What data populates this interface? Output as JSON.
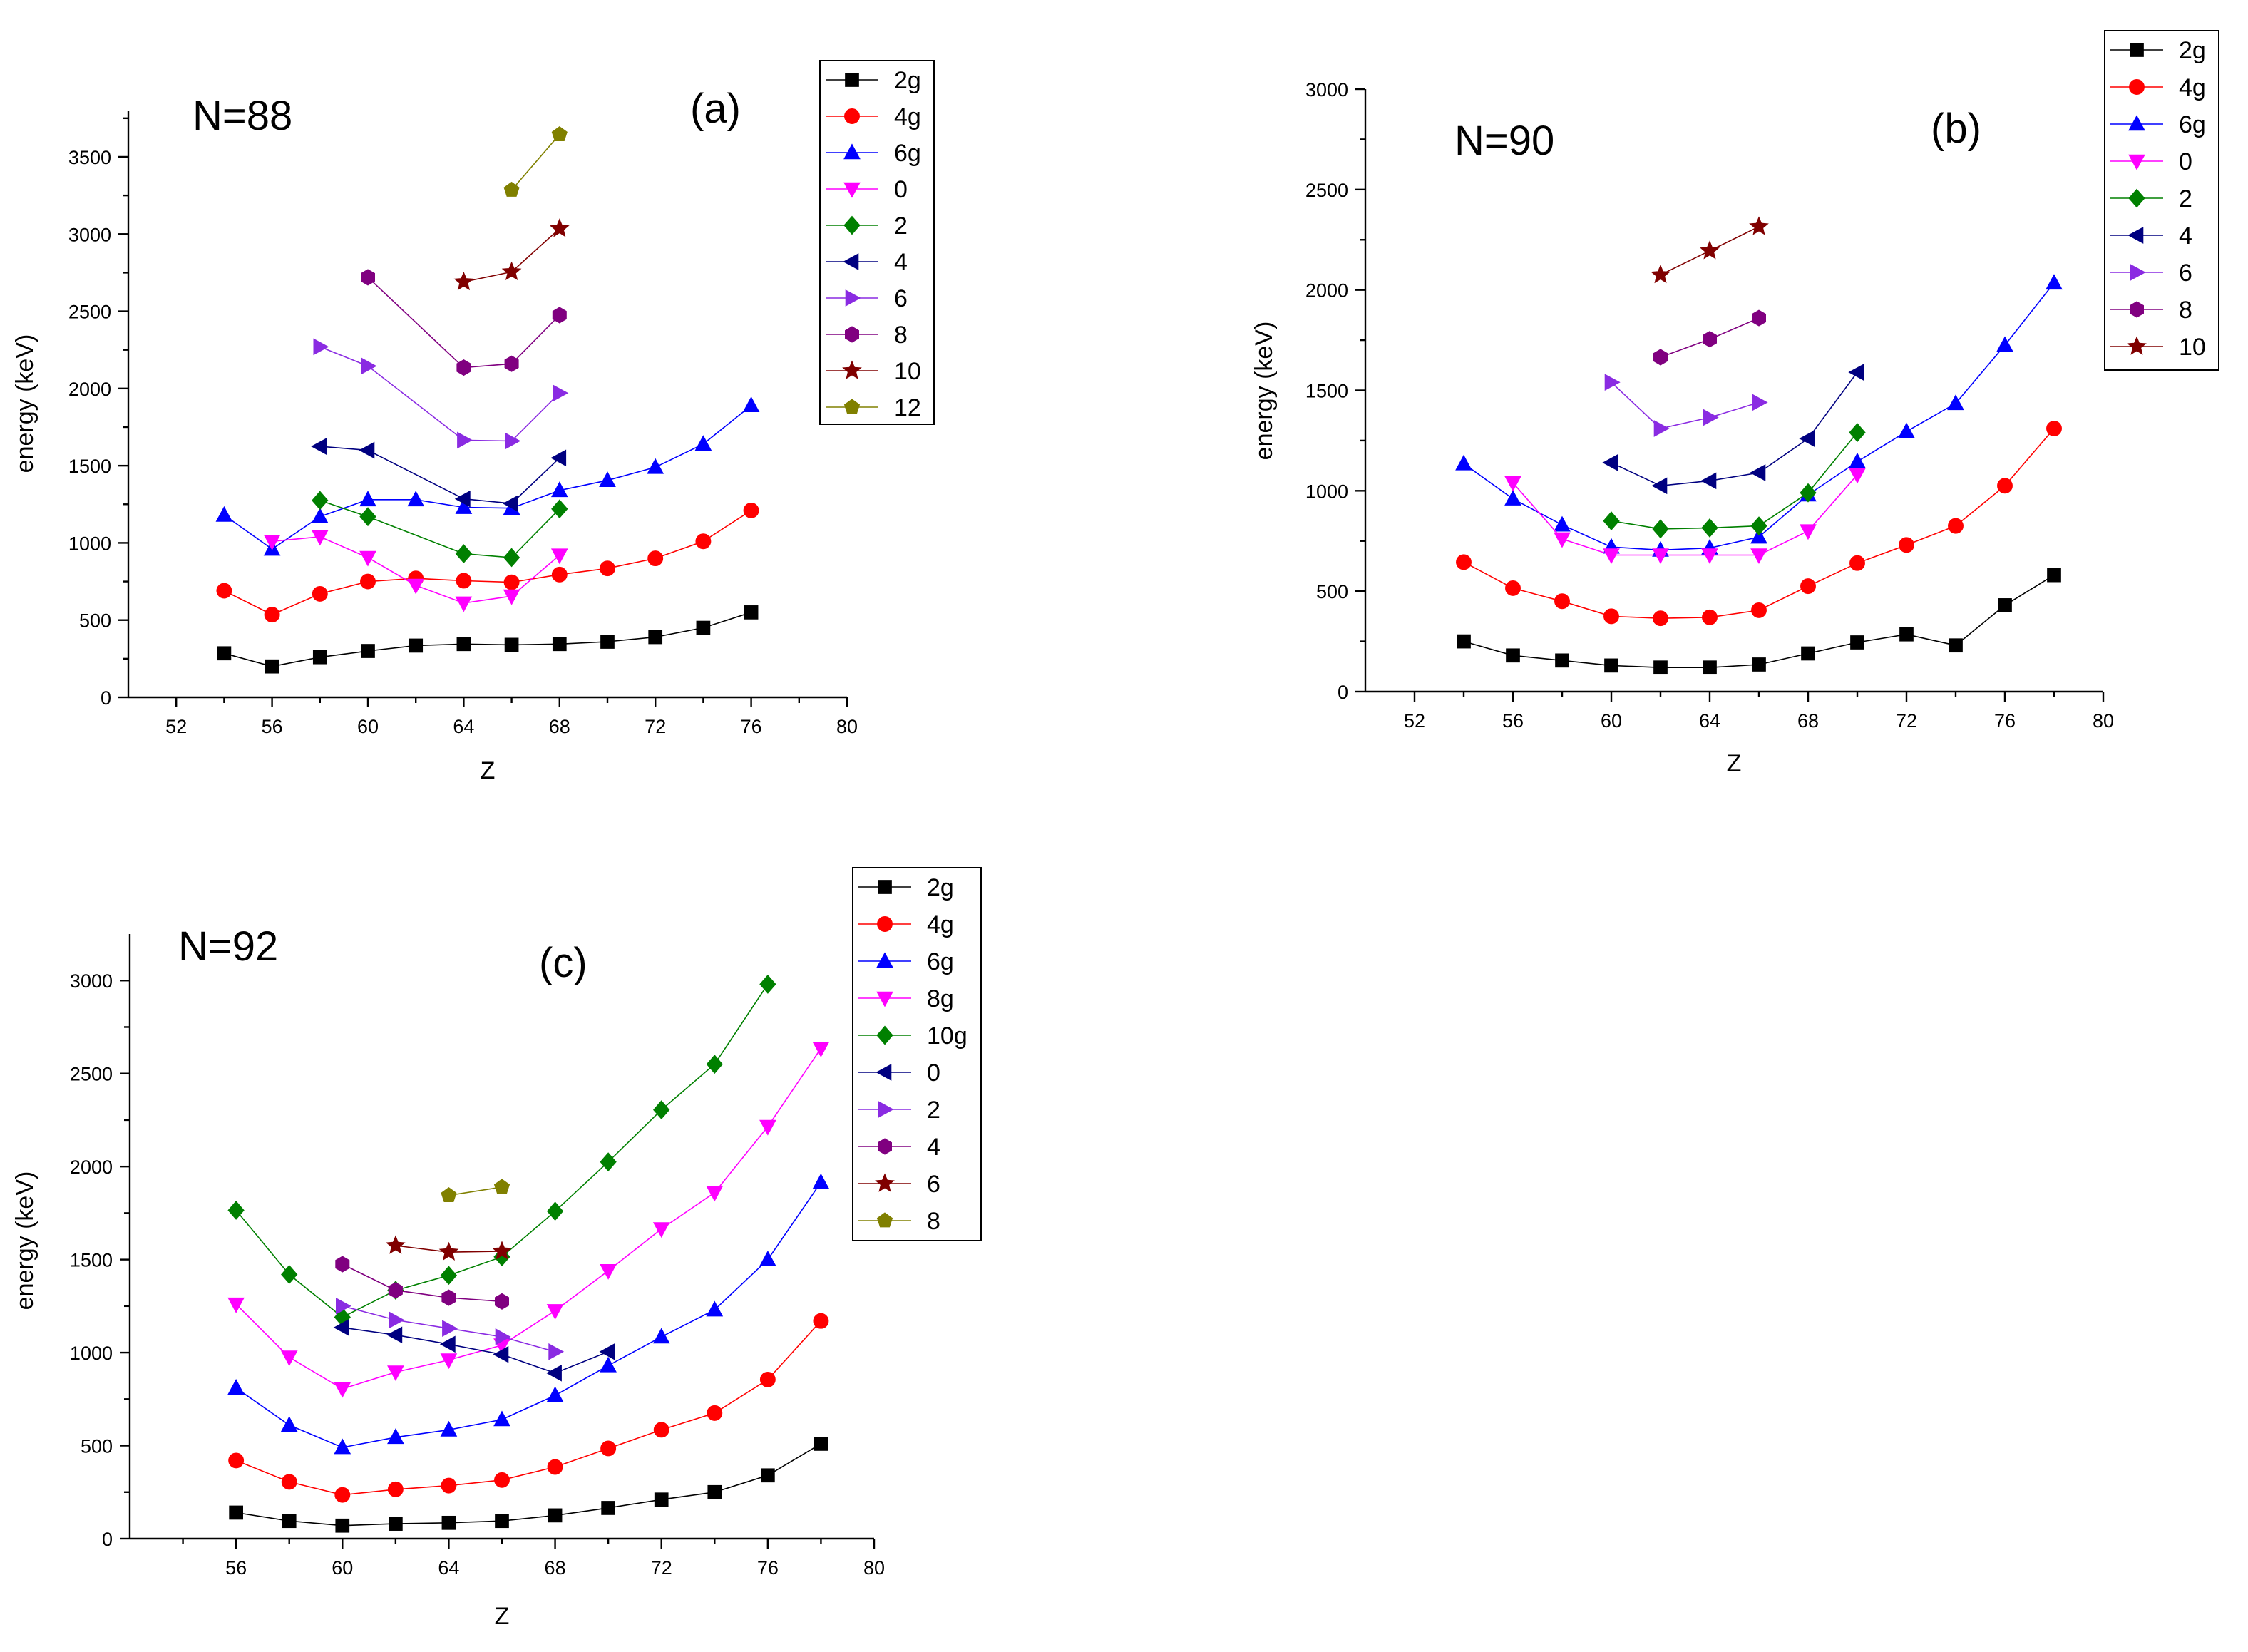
{
  "chart_data": [
    {
      "type": "line",
      "panel": "(a)",
      "annotation": "N=88",
      "xlabel": "Z",
      "ylabel": "energy (keV)",
      "xlim": [
        50,
        80
      ],
      "ylim": [
        0,
        3800
      ],
      "xticks": [
        52,
        56,
        60,
        64,
        68,
        72,
        76,
        80
      ],
      "yticks": [
        0,
        500,
        1000,
        1500,
        2000,
        2500,
        3000,
        3500
      ],
      "legend_position": "top-right",
      "series": [
        {
          "name": "2g",
          "color": "#000000",
          "marker": "square",
          "x": [
            54,
            56,
            58,
            60,
            62,
            64,
            66,
            68,
            70,
            72,
            74,
            76
          ],
          "y": [
            285,
            200,
            260,
            300,
            335,
            345,
            340,
            345,
            360,
            390,
            450,
            550
          ]
        },
        {
          "name": "4g",
          "color": "#ff0000",
          "marker": "circle",
          "x": [
            54,
            56,
            58,
            60,
            62,
            64,
            66,
            68,
            70,
            72,
            74,
            76
          ],
          "y": [
            690,
            535,
            670,
            750,
            770,
            755,
            745,
            795,
            835,
            900,
            1010,
            1210
          ]
        },
        {
          "name": "6g",
          "color": "#0000ff",
          "marker": "triangle-up",
          "x": [
            54,
            56,
            58,
            60,
            62,
            64,
            66,
            68,
            70,
            72,
            74,
            76
          ],
          "y": [
            1180,
            960,
            1170,
            1280,
            1280,
            1230,
            1225,
            1340,
            1405,
            1490,
            1640,
            1890
          ]
        },
        {
          "name": "0",
          "color": "#ff00ff",
          "marker": "triangle-down",
          "x": [
            56,
            58,
            60,
            62,
            64,
            66,
            68
          ],
          "y": [
            1010,
            1040,
            905,
            725,
            610,
            655,
            920
          ]
        },
        {
          "name": "2",
          "color": "#008000",
          "marker": "diamond",
          "x": [
            58,
            60,
            64,
            66,
            68
          ],
          "y": [
            1275,
            1170,
            930,
            905,
            1220
          ]
        },
        {
          "name": "4",
          "color": "#000080",
          "marker": "triangle-left",
          "x": [
            58,
            60,
            64,
            66,
            68
          ],
          "y": [
            1625,
            1600,
            1285,
            1255,
            1550
          ]
        },
        {
          "name": "6",
          "color": "#8a2be2",
          "marker": "triangle-right",
          "x": [
            58,
            60,
            64,
            66,
            68
          ],
          "y": [
            2270,
            2145,
            1665,
            1660,
            1970
          ]
        },
        {
          "name": "8",
          "color": "#800080",
          "marker": "hexagon",
          "x": [
            60,
            64,
            66,
            68
          ],
          "y": [
            2720,
            2135,
            2160,
            2475
          ]
        },
        {
          "name": "10",
          "color": "#800000",
          "marker": "star",
          "x": [
            64,
            66,
            68
          ],
          "y": [
            2690,
            2755,
            3035
          ]
        },
        {
          "name": "12",
          "color": "#808000",
          "marker": "pentagon",
          "x": [
            66,
            68
          ],
          "y": [
            3285,
            3645
          ]
        }
      ]
    },
    {
      "type": "line",
      "panel": "(b)",
      "annotation": "N=90",
      "xlabel": "Z",
      "ylabel": "energy (keV)",
      "xlim": [
        50,
        80
      ],
      "ylim": [
        0,
        3000
      ],
      "xticks": [
        52,
        56,
        60,
        64,
        68,
        72,
        76,
        80
      ],
      "yticks": [
        0,
        500,
        1000,
        1500,
        2000,
        2500,
        3000
      ],
      "legend_position": "top-right",
      "series": [
        {
          "name": "2g",
          "color": "#000000",
          "marker": "square",
          "x": [
            54,
            56,
            58,
            60,
            62,
            64,
            66,
            68,
            70,
            72,
            74,
            76,
            78
          ],
          "y": [
            250,
            180,
            155,
            130,
            120,
            120,
            135,
            190,
            245,
            285,
            230,
            430,
            580
          ]
        },
        {
          "name": "4g",
          "color": "#ff0000",
          "marker": "circle",
          "x": [
            54,
            56,
            58,
            60,
            62,
            64,
            66,
            68,
            70,
            72,
            74,
            76,
            78
          ],
          "y": [
            645,
            515,
            450,
            375,
            365,
            370,
            405,
            525,
            640,
            730,
            825,
            1025,
            1310
          ]
        },
        {
          "name": "6g",
          "color": "#0000ff",
          "marker": "triangle-up",
          "x": [
            54,
            56,
            58,
            60,
            62,
            64,
            66,
            68,
            70,
            72,
            74,
            76,
            78
          ],
          "y": [
            1135,
            960,
            830,
            720,
            705,
            715,
            770,
            980,
            1145,
            1295,
            1435,
            1725,
            2035
          ]
        },
        {
          "name": "0",
          "color": "#ff00ff",
          "marker": "triangle-down",
          "x": [
            56,
            58,
            60,
            62,
            64,
            66,
            68,
            70
          ],
          "y": [
            1040,
            760,
            680,
            680,
            680,
            680,
            800,
            1080
          ]
        },
        {
          "name": "2",
          "color": "#008000",
          "marker": "diamond",
          "x": [
            60,
            62,
            64,
            66,
            68,
            70
          ],
          "y": [
            850,
            810,
            815,
            825,
            990,
            1290
          ]
        },
        {
          "name": "4",
          "color": "#000080",
          "marker": "triangle-left",
          "x": [
            60,
            62,
            64,
            66,
            68,
            70
          ],
          "y": [
            1140,
            1025,
            1050,
            1090,
            1260,
            1590
          ]
        },
        {
          "name": "6",
          "color": "#8a2be2",
          "marker": "triangle-right",
          "x": [
            60,
            62,
            64,
            66
          ],
          "y": [
            1540,
            1310,
            1365,
            1440
          ]
        },
        {
          "name": "8",
          "color": "#800080",
          "marker": "hexagon",
          "x": [
            62,
            64,
            66
          ],
          "y": [
            1665,
            1755,
            1860
          ]
        },
        {
          "name": "10",
          "color": "#800000",
          "marker": "star",
          "x": [
            62,
            64,
            66
          ],
          "y": [
            2075,
            2195,
            2315
          ]
        }
      ]
    },
    {
      "type": "line",
      "panel": "(c)",
      "annotation": "N=92",
      "xlabel": "Z",
      "ylabel": "energy (keV)",
      "xlim": [
        52,
        80
      ],
      "ylim": [
        0,
        3250
      ],
      "xticks": [
        56,
        60,
        64,
        68,
        72,
        76,
        80
      ],
      "yticks": [
        0,
        500,
        1000,
        1500,
        2000,
        2500,
        3000
      ],
      "legend_position": "top-right",
      "series": [
        {
          "name": "2g",
          "color": "#000000",
          "marker": "square",
          "x": [
            56,
            58,
            60,
            62,
            64,
            66,
            68,
            70,
            72,
            74,
            76,
            78
          ],
          "y": [
            140,
            95,
            70,
            80,
            85,
            95,
            125,
            165,
            210,
            250,
            340,
            510
          ]
        },
        {
          "name": "4g",
          "color": "#ff0000",
          "marker": "circle",
          "x": [
            56,
            58,
            60,
            62,
            64,
            66,
            68,
            70,
            72,
            74,
            76,
            78
          ],
          "y": [
            420,
            305,
            235,
            265,
            285,
            315,
            385,
            485,
            585,
            675,
            855,
            1170
          ]
        },
        {
          "name": "6g",
          "color": "#0000ff",
          "marker": "triangle-up",
          "x": [
            56,
            58,
            60,
            62,
            64,
            66,
            68,
            70,
            72,
            74,
            76,
            78
          ],
          "y": [
            810,
            610,
            490,
            545,
            585,
            640,
            770,
            930,
            1085,
            1230,
            1500,
            1915
          ]
        },
        {
          "name": "8g",
          "color": "#ff00ff",
          "marker": "triangle-down",
          "x": [
            56,
            58,
            60,
            62,
            64,
            66,
            68,
            70,
            72,
            74,
            76,
            78
          ],
          "y": [
            1260,
            975,
            805,
            895,
            960,
            1040,
            1225,
            1440,
            1665,
            1860,
            2215,
            2635
          ]
        },
        {
          "name": "10g",
          "color": "#008000",
          "marker": "diamond",
          "x": [
            56,
            58,
            60,
            62,
            64,
            66,
            68,
            70,
            72,
            74,
            76
          ],
          "y": [
            1765,
            1420,
            1190,
            1335,
            1415,
            1515,
            1760,
            2025,
            2305,
            2550,
            2980
          ]
        },
        {
          "name": "0",
          "color": "#000080",
          "marker": "triangle-left",
          "x": [
            60,
            62,
            64,
            66,
            68,
            70
          ],
          "y": [
            1135,
            1095,
            1045,
            990,
            890,
            1005
          ]
        },
        {
          "name": "2",
          "color": "#8a2be2",
          "marker": "triangle-right",
          "x": [
            60,
            62,
            64,
            66,
            68
          ],
          "y": [
            1250,
            1175,
            1130,
            1085,
            1005
          ]
        },
        {
          "name": "4",
          "color": "#800080",
          "marker": "hexagon",
          "x": [
            60,
            62,
            64,
            66
          ],
          "y": [
            1475,
            1335,
            1295,
            1275
          ]
        },
        {
          "name": "6",
          "color": "#800000",
          "marker": "star",
          "x": [
            62,
            64,
            66
          ],
          "y": [
            1575,
            1540,
            1545
          ]
        },
        {
          "name": "8",
          "color": "#808000",
          "marker": "pentagon",
          "x": [
            64,
            66
          ],
          "y": [
            1845,
            1890
          ]
        }
      ]
    }
  ]
}
